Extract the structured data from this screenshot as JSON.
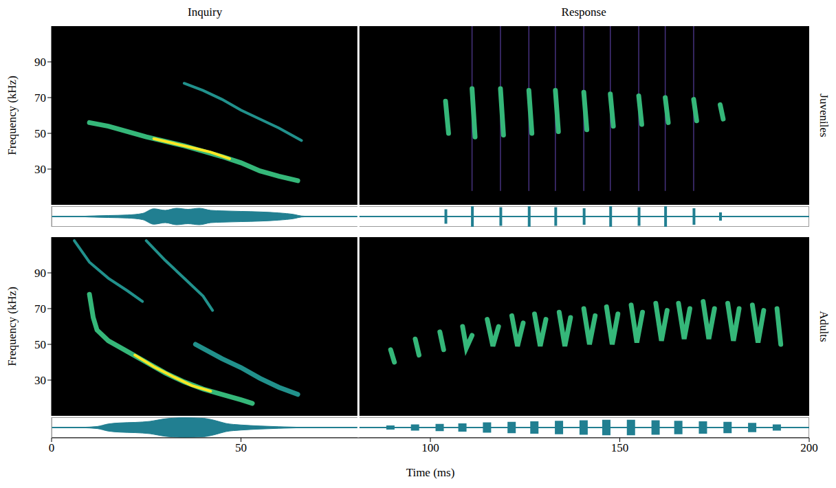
{
  "chart_data": [
    {
      "type": "line",
      "title": "Juveniles",
      "ylabel": "Frequency (kHz)",
      "xlim": [
        0,
        200
      ],
      "ylim": [
        10,
        110
      ],
      "yticks": [
        30,
        50,
        70,
        90
      ],
      "tick_labels": "y",
      "series": [
        {
          "color": "#35b779",
          "line_style": "thick",
          "x": [
            10,
            15,
            20,
            25,
            30,
            35,
            40,
            45,
            50,
            55,
            60,
            65
          ],
          "values": [
            56,
            54,
            51,
            48,
            45.5,
            43,
            40,
            37,
            33.5,
            29,
            26,
            23.5
          ]
        },
        {
          "color": "#fde725",
          "line_style": "solid",
          "x": [
            27,
            32,
            37,
            42,
            47
          ],
          "values": [
            47,
            44.5,
            42,
            39.5,
            35.8
          ]
        },
        {
          "color": "#21918c",
          "line_style": "solid",
          "x": [
            35,
            40,
            45,
            50,
            55,
            60,
            66
          ],
          "values": [
            78,
            74,
            69,
            63,
            58,
            53,
            46
          ]
        },
        {
          "color": "#46327e",
          "line_style": "thin",
          "x": [
            111,
            111
          ],
          "values": [
            110,
            18
          ]
        },
        {
          "color": "#46327e",
          "line_style": "thin",
          "x": [
            118.5,
            118.5
          ],
          "values": [
            110,
            18
          ]
        },
        {
          "color": "#46327e",
          "line_style": "thin",
          "x": [
            126,
            126
          ],
          "values": [
            110,
            18
          ]
        },
        {
          "color": "#46327e",
          "line_style": "thin",
          "x": [
            133,
            133
          ],
          "values": [
            110,
            18
          ]
        },
        {
          "color": "#46327e",
          "line_style": "thin",
          "x": [
            140.5,
            140.5
          ],
          "values": [
            110,
            18
          ]
        },
        {
          "color": "#46327e",
          "line_style": "thin",
          "x": [
            147.5,
            147.5
          ],
          "values": [
            110,
            18
          ]
        },
        {
          "color": "#46327e",
          "line_style": "thin",
          "x": [
            155,
            155
          ],
          "values": [
            110,
            18
          ]
        },
        {
          "color": "#46327e",
          "line_style": "thin",
          "x": [
            162,
            162
          ],
          "values": [
            110,
            18
          ]
        },
        {
          "color": "#46327e",
          "line_style": "thin",
          "x": [
            169.5,
            169.5
          ],
          "values": [
            110,
            18
          ]
        },
        {
          "color": "#35b779",
          "line_style": "thick",
          "x": [
            104,
            104.8
          ],
          "values": [
            68,
            50
          ]
        },
        {
          "color": "#35b779",
          "line_style": "thick",
          "x": [
            111,
            111.8
          ],
          "values": [
            75,
            48
          ]
        },
        {
          "color": "#35b779",
          "line_style": "thick",
          "x": [
            118.5,
            119.3
          ],
          "values": [
            75,
            49
          ]
        },
        {
          "color": "#35b779",
          "line_style": "thick",
          "x": [
            126,
            126.8
          ],
          "values": [
            74,
            50
          ]
        },
        {
          "color": "#35b779",
          "line_style": "thick",
          "x": [
            133,
            133.8
          ],
          "values": [
            74,
            51
          ]
        },
        {
          "color": "#35b779",
          "line_style": "thick",
          "x": [
            140.5,
            141.3
          ],
          "values": [
            73,
            52
          ]
        },
        {
          "color": "#35b779",
          "line_style": "thick",
          "x": [
            147.5,
            148.3
          ],
          "values": [
            72,
            54
          ]
        },
        {
          "color": "#35b779",
          "line_style": "thick",
          "x": [
            155,
            155.8
          ],
          "values": [
            71,
            55
          ]
        },
        {
          "color": "#35b779",
          "line_style": "thick",
          "x": [
            162,
            162.8
          ],
          "values": [
            70,
            56
          ]
        },
        {
          "color": "#35b779",
          "line_style": "thick",
          "x": [
            169.5,
            170.3
          ],
          "values": [
            69,
            57
          ]
        },
        {
          "color": "#35b779",
          "line_style": "thick",
          "x": [
            176.5,
            177.3
          ],
          "values": [
            66,
            58
          ]
        }
      ]
    },
    {
      "type": "area",
      "xlim": [
        0,
        200
      ],
      "ylim": [
        -1,
        1
      ],
      "tick_labels": false,
      "series": [
        {
          "type": "area",
          "color": "#217f91",
          "x": [
            8,
            10,
            15,
            20,
            24,
            27,
            30,
            33,
            36,
            39,
            42,
            45,
            50,
            55,
            60,
            64,
            66,
            68
          ],
          "values": [
            [
              -0.02,
              0.02
            ],
            [
              -0.05,
              0.05
            ],
            [
              -0.1,
              0.1
            ],
            [
              -0.15,
              0.15
            ],
            [
              -0.3,
              0.3
            ],
            [
              -0.75,
              0.75
            ],
            [
              -0.6,
              0.6
            ],
            [
              -0.8,
              0.8
            ],
            [
              -0.7,
              0.7
            ],
            [
              -0.8,
              0.8
            ],
            [
              -0.6,
              0.6
            ],
            [
              -0.55,
              0.55
            ],
            [
              -0.5,
              0.5
            ],
            [
              -0.45,
              0.45
            ],
            [
              -0.35,
              0.35
            ],
            [
              -0.2,
              0.2
            ],
            [
              -0.05,
              0.05
            ],
            [
              -0.02,
              0.02
            ]
          ]
        },
        {
          "type": "bar",
          "color": "#217f91",
          "line_style": "thin",
          "x": [
            104,
            111,
            118.5,
            126,
            133,
            140.5,
            147.5,
            155,
            162,
            169.5,
            176.5
          ],
          "values": [
            [
              -0.7,
              0.7
            ],
            [
              -1,
              1
            ],
            [
              -0.9,
              0.9
            ],
            [
              -1,
              1
            ],
            [
              -0.9,
              0.9
            ],
            [
              -0.8,
              0.8
            ],
            [
              -1,
              1
            ],
            [
              -0.9,
              0.9
            ],
            [
              -1,
              1
            ],
            [
              -0.8,
              0.8
            ],
            [
              -0.4,
              0.4
            ]
          ]
        }
      ]
    },
    {
      "type": "line",
      "title": "Adults",
      "ylabel": "Frequency (kHz)",
      "xlim": [
        0,
        200
      ],
      "ylim": [
        10,
        110
      ],
      "yticks": [
        30,
        50,
        70,
        90
      ],
      "tick_labels": "y",
      "series": [
        {
          "color": "#21918c",
          "line_style": "solid",
          "x": [
            6,
            10,
            15,
            20,
            24
          ],
          "values": [
            108,
            96,
            87,
            80,
            74
          ]
        },
        {
          "color": "#21918c",
          "line_style": "solid",
          "x": [
            25,
            30,
            35,
            40,
            42.5
          ],
          "values": [
            108,
            97,
            87,
            77,
            69
          ]
        },
        {
          "color": "#21918c",
          "line_style": "thick",
          "x": [
            38,
            45,
            50,
            55,
            60,
            65
          ],
          "values": [
            50,
            42,
            37,
            31,
            26,
            22
          ]
        },
        {
          "color": "#35b779",
          "line_style": "thick",
          "x": [
            10,
            11,
            12,
            15,
            20,
            25,
            30,
            35,
            40,
            45,
            50,
            53
          ],
          "values": [
            78,
            65,
            58,
            52,
            46,
            40,
            34,
            29,
            25,
            22,
            19,
            17
          ]
        },
        {
          "color": "#fde725",
          "line_style": "solid",
          "x": [
            22,
            27,
            32,
            37,
            42
          ],
          "values": [
            44,
            37.5,
            32,
            27,
            23.8
          ]
        },
        {
          "color": "#35b779",
          "line_style": "thick",
          "x": [
            89.5,
            90.5
          ],
          "values": [
            47,
            40
          ]
        },
        {
          "color": "#35b779",
          "line_style": "thick",
          "x": [
            96,
            97
          ],
          "values": [
            53,
            44
          ]
        },
        {
          "color": "#35b779",
          "line_style": "thick",
          "x": [
            102.5,
            103.5
          ],
          "values": [
            57,
            47
          ]
        },
        {
          "color": "#35b779",
          "line_style": "thick",
          "x": [
            108.5,
            109.5,
            111
          ],
          "values": [
            60,
            48,
            55
          ]
        },
        {
          "color": "#35b779",
          "line_style": "thick",
          "x": [
            115,
            116.5,
            118
          ],
          "values": [
            64,
            49,
            60
          ]
        },
        {
          "color": "#35b779",
          "line_style": "thick",
          "x": [
            121.5,
            123,
            124.5
          ],
          "values": [
            66,
            49,
            62
          ]
        },
        {
          "color": "#35b779",
          "line_style": "thick",
          "x": [
            127.5,
            129,
            130.5
          ],
          "values": [
            67,
            49,
            64
          ]
        },
        {
          "color": "#35b779",
          "line_style": "thick",
          "x": [
            134,
            135.5,
            137
          ],
          "values": [
            68,
            49,
            65
          ]
        },
        {
          "color": "#35b779",
          "line_style": "thick",
          "x": [
            140.5,
            142,
            143.5
          ],
          "values": [
            70,
            50,
            66
          ]
        },
        {
          "color": "#35b779",
          "line_style": "thick",
          "x": [
            146.5,
            148,
            149.5
          ],
          "values": [
            71,
            50,
            67
          ]
        },
        {
          "color": "#35b779",
          "line_style": "thick",
          "x": [
            153,
            154.5,
            156
          ],
          "values": [
            72,
            51,
            68
          ]
        },
        {
          "color": "#35b779",
          "line_style": "thick",
          "x": [
            159.5,
            161,
            162.5
          ],
          "values": [
            73,
            52,
            69
          ]
        },
        {
          "color": "#35b779",
          "line_style": "thick",
          "x": [
            165.5,
            167,
            168.5
          ],
          "values": [
            73,
            53,
            70
          ]
        },
        {
          "color": "#35b779",
          "line_style": "thick",
          "x": [
            172,
            173.5,
            175
          ],
          "values": [
            74,
            53,
            70
          ]
        },
        {
          "color": "#35b779",
          "line_style": "thick",
          "x": [
            178.5,
            180,
            181.5
          ],
          "values": [
            73,
            52,
            70
          ]
        },
        {
          "color": "#35b779",
          "line_style": "thick",
          "x": [
            185,
            186.5,
            188
          ],
          "values": [
            72,
            51,
            69
          ]
        },
        {
          "color": "#35b779",
          "line_style": "thick",
          "x": [
            191.5,
            192.5
          ],
          "values": [
            70,
            50
          ]
        }
      ]
    },
    {
      "type": "area",
      "xlabel": "Time (ms)",
      "xlim": [
        0,
        200
      ],
      "xticks": [
        0,
        50,
        100,
        150,
        200
      ],
      "ylim": [
        -1,
        1
      ],
      "tick_labels": "x",
      "series": [
        {
          "type": "area",
          "color": "#217f91",
          "x": [
            8,
            12,
            15,
            18,
            22,
            26,
            30,
            35,
            40,
            43,
            46,
            50,
            55,
            60,
            65,
            68
          ],
          "values": [
            [
              -0.02,
              0.02
            ],
            [
              -0.1,
              0.1
            ],
            [
              -0.35,
              0.35
            ],
            [
              -0.45,
              0.45
            ],
            [
              -0.5,
              0.5
            ],
            [
              -0.6,
              0.6
            ],
            [
              -0.85,
              0.85
            ],
            [
              -0.95,
              0.95
            ],
            [
              -0.9,
              0.9
            ],
            [
              -0.7,
              0.7
            ],
            [
              -0.4,
              0.4
            ],
            [
              -0.25,
              0.25
            ],
            [
              -0.15,
              0.15
            ],
            [
              -0.08,
              0.08
            ],
            [
              -0.03,
              0.03
            ],
            [
              -0.01,
              0.01
            ]
          ]
        },
        {
          "type": "bar",
          "color": "#217f91",
          "line_style": "thick",
          "x": [
            89.5,
            96,
            102.5,
            108.5,
            115,
            121.5,
            127.5,
            134,
            140.5,
            146.5,
            153,
            159.5,
            165.5,
            172,
            178.5,
            185,
            191.5
          ],
          "values": [
            [
              -0.2,
              0.2
            ],
            [
              -0.3,
              0.3
            ],
            [
              -0.35,
              0.35
            ],
            [
              -0.4,
              0.4
            ],
            [
              -0.5,
              0.5
            ],
            [
              -0.55,
              0.55
            ],
            [
              -0.6,
              0.6
            ],
            [
              -0.65,
              0.65
            ],
            [
              -0.7,
              0.7
            ],
            [
              -0.75,
              0.75
            ],
            [
              -0.75,
              0.75
            ],
            [
              -0.7,
              0.7
            ],
            [
              -0.65,
              0.65
            ],
            [
              -0.6,
              0.6
            ],
            [
              -0.55,
              0.55
            ],
            [
              -0.45,
              0.45
            ],
            [
              -0.3,
              0.3
            ]
          ]
        }
      ]
    }
  ],
  "sections": [
    {
      "label": "Inquiry",
      "xlim": [
        0,
        81
      ]
    },
    {
      "label": "Response",
      "xlim": [
        81,
        200
      ]
    }
  ]
}
